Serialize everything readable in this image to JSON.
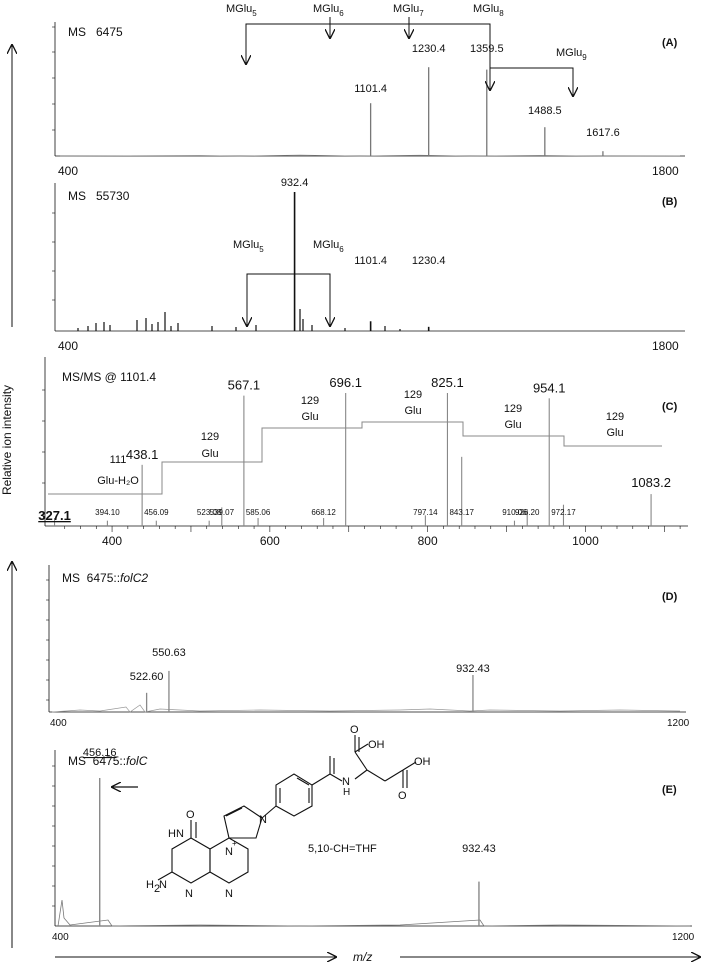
{
  "figure": {
    "y_axis_label": "Relative ion intensity",
    "x_axis_label": "m/z"
  },
  "chart_data": [
    {
      "panel": "(A)",
      "type": "bar",
      "title": "MS   6475",
      "xlim": [
        400,
        1800
      ],
      "x_ticks": [
        "400",
        "1800"
      ],
      "peaks": [
        {
          "x": 1101.4,
          "y": 44,
          "label": "1101.4"
        },
        {
          "x": 1230.4,
          "y": 74,
          "label": "1230.4"
        },
        {
          "x": 1359.5,
          "y": 72,
          "label": "1359.5"
        },
        {
          "x": 1488.5,
          "y": 24,
          "label": "1488.5"
        },
        {
          "x": 1617.6,
          "y": 4,
          "label": "1617.6"
        }
      ],
      "annotations": [
        {
          "base": "MGlu",
          "sub": "5"
        },
        {
          "base": "MGlu",
          "sub": "6"
        },
        {
          "base": "MGlu",
          "sub": "7"
        },
        {
          "base": "MGlu",
          "sub": "8"
        },
        {
          "base": "MGlu",
          "sub": "9"
        }
      ]
    },
    {
      "panel": "(B)",
      "type": "bar",
      "title": "MS   55730",
      "xlim": [
        400,
        1800
      ],
      "x_ticks": [
        "400",
        "1800"
      ],
      "peaks": [
        {
          "x": 932.4,
          "y": 100,
          "label": "932.4"
        },
        {
          "x": 1101.4,
          "y": 7,
          "label": "1101.4"
        },
        {
          "x": 1230.4,
          "y": 3,
          "label": "1230.4"
        }
      ],
      "annotations": [
        {
          "base": "MGlu",
          "sub": "5"
        },
        {
          "base": "MGlu",
          "sub": "6"
        }
      ]
    },
    {
      "panel": "(C)",
      "type": "bar",
      "title": "MS/MS @ 1101.4",
      "xlim": [
        315,
        1130
      ],
      "x_ticks": [
        "400",
        "600",
        "800",
        "1000"
      ],
      "peaks": [
        {
          "x": 327.1,
          "y": 6,
          "label": "327.1"
        },
        {
          "x": 394.1,
          "y": 4,
          "label": "394.10"
        },
        {
          "x": 438.1,
          "y": 46,
          "label": "438.1"
        },
        {
          "x": 456.09,
          "y": 4,
          "label": "456.09"
        },
        {
          "x": 523.08,
          "y": 4,
          "label": "523.08"
        },
        {
          "x": 539.07,
          "y": 14,
          "label": "539.07"
        },
        {
          "x": 567.1,
          "y": 98,
          "label": "567.1"
        },
        {
          "x": 585.06,
          "y": 6,
          "label": "585.06"
        },
        {
          "x": 668.12,
          "y": 6,
          "label": "668.12"
        },
        {
          "x": 696.1,
          "y": 100,
          "label": "696.1"
        },
        {
          "x": 797.14,
          "y": 8,
          "label": "797.14"
        },
        {
          "x": 825.1,
          "y": 100,
          "label": "825.1"
        },
        {
          "x": 843.17,
          "y": 52,
          "label": "843.17"
        },
        {
          "x": 910.06,
          "y": 4,
          "label": "910.06"
        },
        {
          "x": 926.2,
          "y": 12,
          "label": "926.20"
        },
        {
          "x": 954.1,
          "y": 96,
          "label": "954.1"
        },
        {
          "x": 972.17,
          "y": 16,
          "label": "972.17"
        },
        {
          "x": 1083.2,
          "y": 24,
          "label": "1083.2"
        }
      ],
      "loss_annotations": [
        {
          "mass": "111",
          "name": "Glu-H₂O"
        },
        {
          "mass": "129",
          "name": "Glu"
        },
        {
          "mass": "129",
          "name": "Glu"
        },
        {
          "mass": "129",
          "name": "Glu"
        },
        {
          "mass": "129",
          "name": "Glu"
        },
        {
          "mass": "129",
          "name": "Glu"
        }
      ]
    },
    {
      "panel": "(D)",
      "type": "bar",
      "title_prefix": "MS  6475::",
      "title_italic": "folC2",
      "xlim": [
        400,
        1200
      ],
      "x_ticks": [
        "400",
        "1200"
      ],
      "peaks": [
        {
          "x": 522.6,
          "y": 14,
          "label": "522.60"
        },
        {
          "x": 550.63,
          "y": 30,
          "label": "550.63"
        },
        {
          "x": 932.43,
          "y": 27,
          "label": "932.43"
        }
      ]
    },
    {
      "panel": "(E)",
      "type": "bar",
      "title_prefix": "MS  6475::",
      "title_italic": "folC",
      "xlim": [
        400,
        1200
      ],
      "x_ticks": [
        "400",
        "1200"
      ],
      "peaks": [
        {
          "x": 456.16,
          "y": 100,
          "label": "456.16"
        },
        {
          "x": 932.43,
          "y": 30,
          "label": "932.43"
        }
      ],
      "structure_label": "5,10-CH=THF"
    }
  ]
}
